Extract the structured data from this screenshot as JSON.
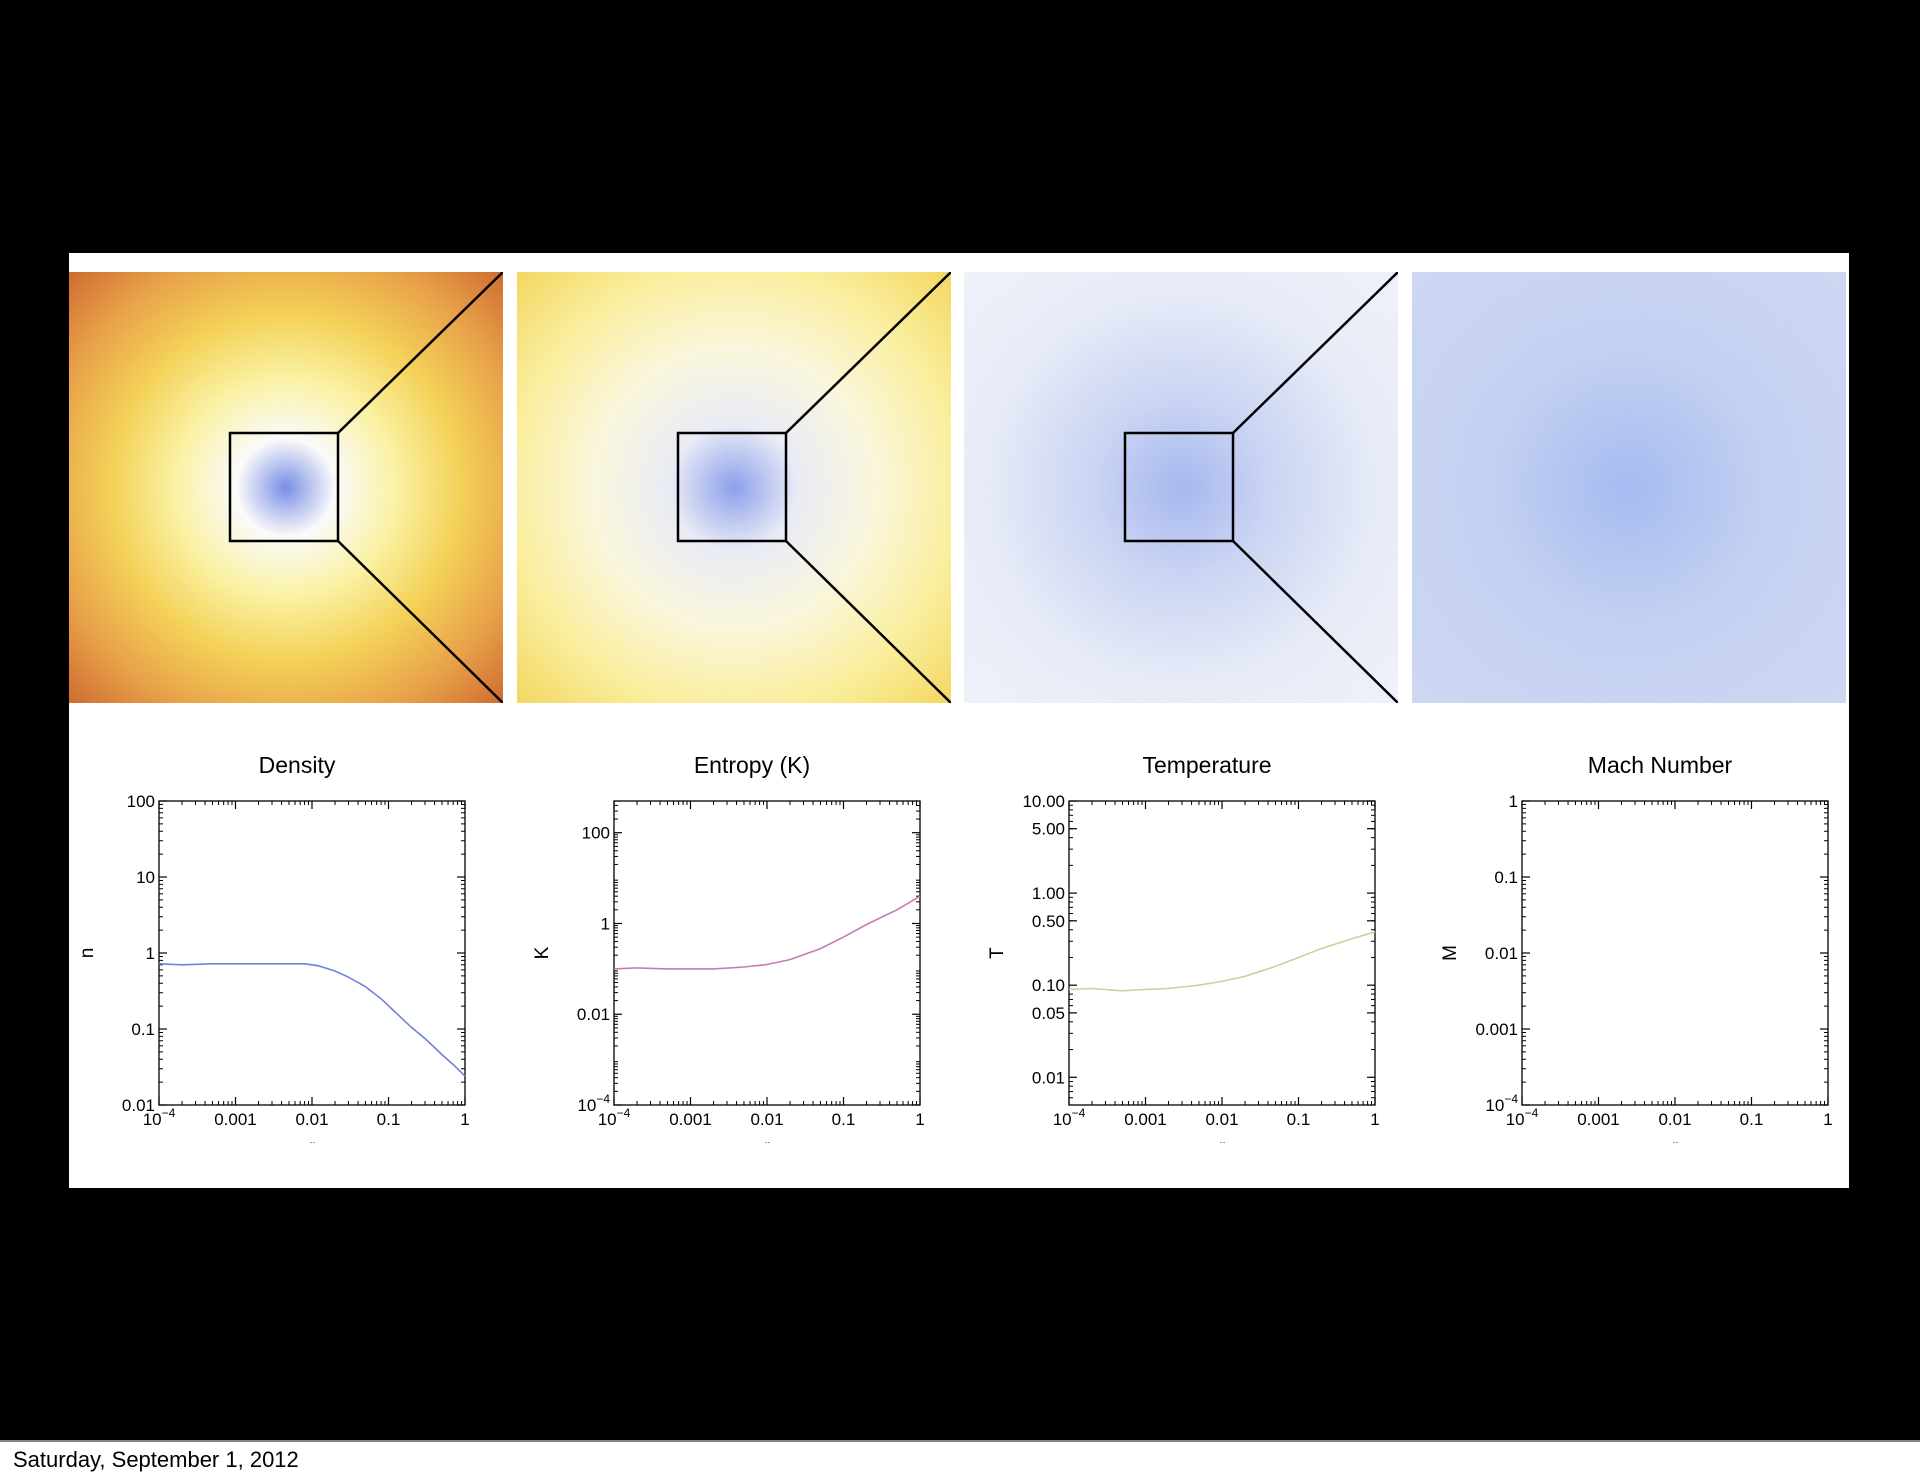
{
  "footer": {
    "date": "Saturday, September 1, 2012"
  },
  "colors": {
    "page_background": "#000000",
    "figure_background": "#ffffff",
    "zoom_box": "#000000"
  },
  "images": [
    {
      "name": "density-map",
      "palette": [
        "#7b91ea",
        "#ffffff",
        "#fff7a8",
        "#f9d65a",
        "#eda54b",
        "#d0692f"
      ],
      "zoom_box": true
    },
    {
      "name": "entropy-map",
      "palette": [
        "#8fa3ef",
        "#eef0fb",
        "#fffbe0",
        "#fff3a0",
        "#f7d95e"
      ],
      "zoom_box": true
    },
    {
      "name": "temperature-map",
      "palette": [
        "#a9bbf3",
        "#cfd9f8",
        "#ebf0fc",
        "#f4f7fe"
      ],
      "zoom_box": true
    },
    {
      "name": "mach-map",
      "palette": [
        "#a9bff6",
        "#c8d5f6",
        "#d2dcf7"
      ],
      "zoom_box": false
    }
  ],
  "chart_data": [
    {
      "type": "line",
      "title": "Density",
      "xlabel": "r",
      "ylabel": "n",
      "xscale": "log",
      "yscale": "log",
      "xlim": [
        0.0001,
        1
      ],
      "ylim": [
        0.01,
        100
      ],
      "xticks": [
        {
          "v": 0.0001,
          "b": "10",
          "e": "−4"
        },
        {
          "v": 0.001,
          "t": "0.001"
        },
        {
          "v": 0.01,
          "t": "0.01"
        },
        {
          "v": 0.1,
          "t": "0.1"
        },
        {
          "v": 1,
          "t": "1"
        }
      ],
      "yticks": [
        {
          "v": 100,
          "t": "100"
        },
        {
          "v": 10,
          "t": "10"
        },
        {
          "v": 1,
          "t": "1"
        },
        {
          "v": 0.1,
          "t": "0.1"
        },
        {
          "v": 0.01,
          "t": "0.01"
        }
      ],
      "series": [
        {
          "color": "#6d84d8",
          "x": [
            0.0001,
            0.0002,
            0.0005,
            0.001,
            0.002,
            0.005,
            0.008,
            0.012,
            0.02,
            0.03,
            0.05,
            0.08,
            0.12,
            0.2,
            0.3,
            0.5,
            0.7,
            1.0
          ],
          "y": [
            0.72,
            0.7,
            0.72,
            0.72,
            0.72,
            0.72,
            0.72,
            0.68,
            0.58,
            0.48,
            0.36,
            0.25,
            0.17,
            0.105,
            0.075,
            0.046,
            0.034,
            0.024
          ]
        }
      ]
    },
    {
      "type": "line",
      "title": "Entropy (K)",
      "xlabel": "r",
      "ylabel": "K",
      "xscale": "log",
      "yscale": "log",
      "xlim": [
        0.0001,
        1
      ],
      "ylim": [
        0.0001,
        500
      ],
      "xticks": [
        {
          "v": 0.0001,
          "b": "10",
          "e": "−4"
        },
        {
          "v": 0.001,
          "t": "0.001"
        },
        {
          "v": 0.01,
          "t": "0.01"
        },
        {
          "v": 0.1,
          "t": "0.1"
        },
        {
          "v": 1,
          "t": "1"
        }
      ],
      "yticks": [
        {
          "v": 100,
          "t": "100"
        },
        {
          "v": 1,
          "t": "1"
        },
        {
          "v": 0.01,
          "t": "0.01"
        },
        {
          "v": 0.0001,
          "b": "10",
          "e": "−4"
        }
      ],
      "series": [
        {
          "color": "#c77bb0",
          "x": [
            0.0001,
            0.0002,
            0.0005,
            0.001,
            0.002,
            0.005,
            0.01,
            0.02,
            0.05,
            0.1,
            0.2,
            0.5,
            1.0
          ],
          "y": [
            0.1,
            0.105,
            0.1,
            0.1,
            0.1,
            0.11,
            0.125,
            0.16,
            0.28,
            0.5,
            0.95,
            2.0,
            4.0
          ]
        }
      ]
    },
    {
      "type": "line",
      "title": "Temperature",
      "xlabel": "r",
      "ylabel": "T",
      "xscale": "log",
      "yscale": "log",
      "xlim": [
        0.0001,
        1
      ],
      "ylim": [
        0.005,
        10
      ],
      "xticks": [
        {
          "v": 0.0001,
          "b": "10",
          "e": "−4"
        },
        {
          "v": 0.001,
          "t": "0.001"
        },
        {
          "v": 0.01,
          "t": "0.01"
        },
        {
          "v": 0.1,
          "t": "0.1"
        },
        {
          "v": 1,
          "t": "1"
        }
      ],
      "yticks": [
        {
          "v": 10,
          "t": "10.00"
        },
        {
          "v": 5,
          "t": "5.00"
        },
        {
          "v": 1,
          "t": "1.00"
        },
        {
          "v": 0.5,
          "t": "0.50"
        },
        {
          "v": 0.1,
          "t": "0.10"
        },
        {
          "v": 0.05,
          "t": "0.05"
        },
        {
          "v": 0.01,
          "t": "0.01"
        }
      ],
      "series": [
        {
          "color": "#c9d39a",
          "x": [
            0.0001,
            0.0002,
            0.0005,
            0.001,
            0.002,
            0.005,
            0.01,
            0.02,
            0.05,
            0.1,
            0.2,
            0.5,
            1.0
          ],
          "y": [
            0.09,
            0.092,
            0.087,
            0.09,
            0.092,
            0.1,
            0.11,
            0.125,
            0.16,
            0.2,
            0.25,
            0.32,
            0.38
          ]
        }
      ]
    },
    {
      "type": "line",
      "title": "Mach Number",
      "xlabel": "r",
      "ylabel": "M",
      "xscale": "log",
      "yscale": "log",
      "xlim": [
        0.0001,
        1
      ],
      "ylim": [
        0.0001,
        1
      ],
      "xticks": [
        {
          "v": 0.0001,
          "b": "10",
          "e": "−4"
        },
        {
          "v": 0.001,
          "t": "0.001"
        },
        {
          "v": 0.01,
          "t": "0.01"
        },
        {
          "v": 0.1,
          "t": "0.1"
        },
        {
          "v": 1,
          "t": "1"
        }
      ],
      "yticks": [
        {
          "v": 1,
          "t": "1"
        },
        {
          "v": 0.1,
          "t": "0.1"
        },
        {
          "v": 0.01,
          "t": "0.01"
        },
        {
          "v": 0.001,
          "t": "0.001"
        },
        {
          "v": 0.0001,
          "b": "10",
          "e": "−4"
        }
      ],
      "series": []
    }
  ]
}
